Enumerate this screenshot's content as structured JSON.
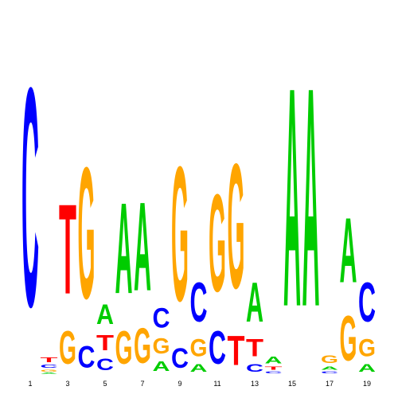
{
  "chart_data": {
    "type": "logo",
    "categories": [
      "1",
      null,
      "3",
      null,
      "5",
      null,
      "7",
      null,
      "9",
      null,
      "11",
      null,
      "13",
      null,
      "15",
      null,
      "17",
      null,
      "19"
    ],
    "ylim": [
      0,
      2
    ],
    "colors": {
      "A": "#00cc00",
      "C": "#0000ff",
      "G": "#ffa500",
      "T": "#ff0000"
    },
    "columns": [
      {
        "letters": [
          {
            "letter": "C",
            "value": 2.0
          }
        ]
      },
      {
        "letters": [
          {
            "letter": "A",
            "value": 0.01
          },
          {
            "letter": "G",
            "value": 0.02
          },
          {
            "letter": "C",
            "value": 0.03
          },
          {
            "letter": "T",
            "value": 0.04
          }
        ]
      },
      {
        "letters": [
          {
            "letter": "G",
            "value": 0.3
          },
          {
            "letter": "T",
            "value": 0.82
          }
        ]
      },
      {
        "letters": [
          {
            "letter": "C",
            "value": 0.2
          },
          {
            "letter": "G",
            "value": 1.2
          }
        ]
      },
      {
        "letters": [
          {
            "letter": "C",
            "value": 0.11
          },
          {
            "letter": "T",
            "value": 0.14
          },
          {
            "letter": "A",
            "value": 0.18
          }
        ]
      },
      {
        "letters": [
          {
            "letter": "G",
            "value": 0.3
          },
          {
            "letter": "A",
            "value": 0.83
          }
        ]
      },
      {
        "letters": [
          {
            "letter": "G",
            "value": 0.32
          },
          {
            "letter": "A",
            "value": 0.81
          }
        ]
      },
      {
        "letters": [
          {
            "letter": "A",
            "value": 0.09
          },
          {
            "letter": "G",
            "value": 0.14
          },
          {
            "letter": "C",
            "value": 0.18
          }
        ]
      },
      {
        "letters": [
          {
            "letter": "C",
            "value": 0.18
          },
          {
            "letter": "G",
            "value": 1.23
          }
        ]
      },
      {
        "letters": [
          {
            "letter": "A",
            "value": 0.07
          },
          {
            "letter": "G",
            "value": 0.16
          },
          {
            "letter": "C",
            "value": 0.36
          }
        ]
      },
      {
        "letters": [
          {
            "letter": "C",
            "value": 0.3
          },
          {
            "letter": "G",
            "value": 0.89
          }
        ]
      },
      {
        "letters": [
          {
            "letter": "T",
            "value": 0.27
          },
          {
            "letter": "G",
            "value": 1.14
          }
        ]
      },
      {
        "letters": [
          {
            "letter": "C",
            "value": 0.07
          },
          {
            "letter": "T",
            "value": 0.16
          },
          {
            "letter": "A",
            "value": 0.36
          }
        ]
      },
      {
        "letters": [
          {
            "letter": "C",
            "value": 0.02
          },
          {
            "letter": "T",
            "value": 0.03
          },
          {
            "letter": "A",
            "value": 0.06
          }
        ]
      },
      {
        "letters": [
          {
            "letter": "A",
            "value": 2.0
          }
        ]
      },
      {
        "letters": [
          {
            "letter": "A",
            "value": 2.0
          }
        ]
      },
      {
        "letters": [
          {
            "letter": "C",
            "value": 0.02
          },
          {
            "letter": "A",
            "value": 0.03
          },
          {
            "letter": "G",
            "value": 0.07
          }
        ]
      },
      {
        "letters": [
          {
            "letter": "G",
            "value": 0.41
          },
          {
            "letter": "A",
            "value": 0.59
          }
        ]
      },
      {
        "letters": [
          {
            "letter": "A",
            "value": 0.07
          },
          {
            "letter": "G",
            "value": 0.16
          },
          {
            "letter": "C",
            "value": 0.36
          }
        ]
      }
    ]
  }
}
